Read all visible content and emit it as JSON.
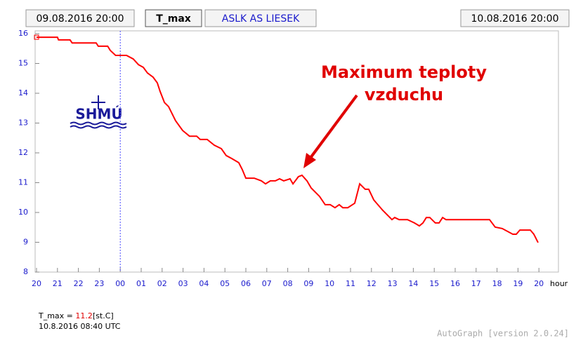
{
  "chart_data": {
    "type": "line",
    "start_label": "09.08.2016 20:00",
    "end_label": "10.08.2016 20:00",
    "station": "ASLK AS LIESEK",
    "logo": "SHMÚ",
    "annotation": [
      "Maximum teploty",
      "vzduchu"
    ],
    "x_unit": "hour",
    "series": [
      {
        "name": "T_max",
        "color": "#ff0000",
        "x": [
          0.0,
          1.0,
          1.05,
          1.6,
          1.7,
          2.85,
          2.95,
          3.4,
          3.52,
          3.78,
          4.3,
          4.62,
          4.87,
          5.1,
          5.3,
          5.57,
          5.77,
          5.9,
          6.11,
          6.31,
          6.64,
          6.98,
          7.31,
          7.65,
          7.82,
          8.15,
          8.49,
          8.83,
          9.06,
          9.33,
          9.66,
          9.83,
          10.0,
          10.4,
          10.74,
          10.94,
          11.17,
          11.41,
          11.61,
          11.81,
          12.11,
          12.25,
          12.51,
          12.68,
          12.92,
          13.12,
          13.52,
          13.79,
          14.03,
          14.26,
          14.46,
          14.63,
          14.87,
          15.2,
          15.44,
          15.7,
          15.87,
          16.11,
          16.54,
          16.98,
          17.11,
          17.32,
          17.72,
          18.05,
          18.29,
          18.46,
          18.62,
          18.79,
          19.05,
          19.23,
          19.4,
          19.56,
          21.64,
          21.91,
          22.25,
          22.75,
          22.92,
          23.09,
          23.59,
          23.76,
          23.96
        ],
        "y": [
          15.88,
          15.88,
          15.79,
          15.79,
          15.69,
          15.69,
          15.58,
          15.58,
          15.44,
          15.27,
          15.27,
          15.15,
          14.96,
          14.87,
          14.68,
          14.54,
          14.35,
          14.07,
          13.69,
          13.55,
          13.08,
          12.75,
          12.56,
          12.56,
          12.45,
          12.45,
          12.26,
          12.14,
          11.91,
          11.81,
          11.67,
          11.44,
          11.15,
          11.15,
          11.06,
          10.96,
          11.06,
          11.06,
          11.13,
          11.06,
          11.13,
          10.96,
          11.2,
          11.25,
          11.06,
          10.82,
          10.54,
          10.26,
          10.26,
          10.16,
          10.26,
          10.16,
          10.16,
          10.31,
          10.96,
          10.78,
          10.78,
          10.42,
          10.07,
          9.76,
          9.83,
          9.76,
          9.76,
          9.65,
          9.55,
          9.65,
          9.83,
          9.83,
          9.65,
          9.65,
          9.83,
          9.76,
          9.76,
          9.51,
          9.46,
          9.27,
          9.27,
          9.41,
          9.41,
          9.27,
          8.99
        ]
      }
    ],
    "xlim": [
      0,
      25
    ],
    "ylim": [
      8,
      16
    ],
    "xticks": [
      {
        "value": 0,
        "label": "20"
      },
      {
        "value": 1,
        "label": "21"
      },
      {
        "value": 2,
        "label": "22"
      },
      {
        "value": 3,
        "label": "23"
      },
      {
        "value": 4,
        "label": "00"
      },
      {
        "value": 5,
        "label": "01"
      },
      {
        "value": 6,
        "label": "02"
      },
      {
        "value": 7,
        "label": "03"
      },
      {
        "value": 8,
        "label": "04"
      },
      {
        "value": 9,
        "label": "05"
      },
      {
        "value": 10,
        "label": "06"
      },
      {
        "value": 11,
        "label": "07"
      },
      {
        "value": 12,
        "label": "08"
      },
      {
        "value": 13,
        "label": "09"
      },
      {
        "value": 14,
        "label": "10"
      },
      {
        "value": 15,
        "label": "11"
      },
      {
        "value": 16,
        "label": "12"
      },
      {
        "value": 17,
        "label": "13"
      },
      {
        "value": 18,
        "label": "14"
      },
      {
        "value": 19,
        "label": "15"
      },
      {
        "value": 20,
        "label": "16"
      },
      {
        "value": 21,
        "label": "17"
      },
      {
        "value": 22,
        "label": "18"
      },
      {
        "value": 23,
        "label": "19"
      },
      {
        "value": 24,
        "label": "20"
      }
    ],
    "yticks": [
      8,
      9,
      10,
      11,
      12,
      13,
      14,
      15,
      16
    ],
    "vline_x": 4,
    "readout_label": "T_max = ",
    "readout_value": 11.2,
    "readout_unit": "[st.C]",
    "readout_time": "10.8.2016 08:40 UTC",
    "footer": "AutoGraph [version 2.0.24]"
  }
}
